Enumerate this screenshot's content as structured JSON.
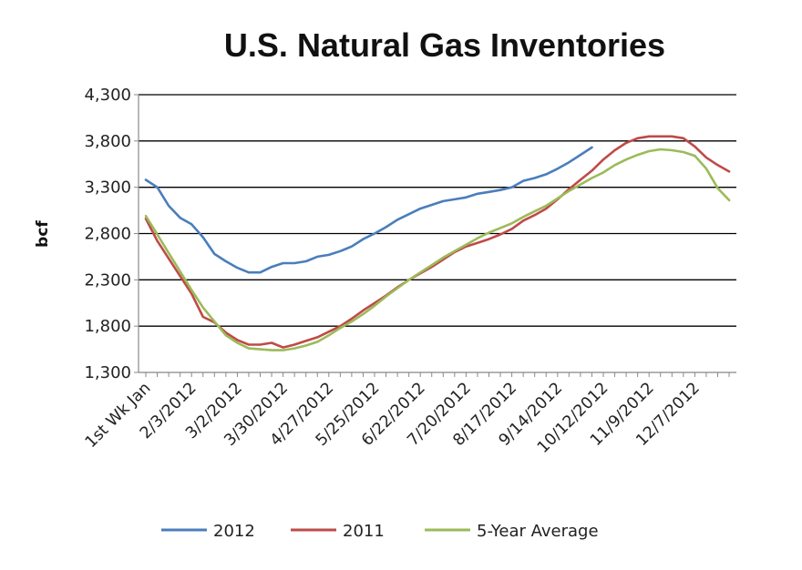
{
  "chart_data": {
    "type": "line",
    "title": "U.S. Natural Gas Inventories",
    "xlabel": "",
    "ylabel": "bcf",
    "ylim": [
      1300,
      4300
    ],
    "yticks": [
      1300,
      1800,
      2300,
      2800,
      3300,
      3800,
      4300
    ],
    "ytick_labels": [
      "1,300",
      "1,800",
      "2,300",
      "2,800",
      "3,300",
      "3,800",
      "4,300"
    ],
    "grid": true,
    "legend_position": "bottom",
    "x_count": 52,
    "x_ticks": [
      {
        "index": 0,
        "label": "1st Wk Jan"
      },
      {
        "index": 4,
        "label": "2/3/2012"
      },
      {
        "index": 8,
        "label": "3/2/2012"
      },
      {
        "index": 12,
        "label": "3/30/2012"
      },
      {
        "index": 16,
        "label": "4/27/2012"
      },
      {
        "index": 20,
        "label": "5/25/2012"
      },
      {
        "index": 24,
        "label": "6/22/2012"
      },
      {
        "index": 28,
        "label": "7/20/2012"
      },
      {
        "index": 32,
        "label": "8/17/2012"
      },
      {
        "index": 36,
        "label": "9/14/2012"
      },
      {
        "index": 40,
        "label": "10/12/2012"
      },
      {
        "index": 44,
        "label": "11/9/2012"
      },
      {
        "index": 48,
        "label": "12/7/2012"
      }
    ],
    "series": [
      {
        "name": "2012",
        "color": "#4a7ebb",
        "values": [
          3380,
          3300,
          3100,
          2970,
          2900,
          2760,
          2580,
          2500,
          2430,
          2380,
          2380,
          2440,
          2480,
          2480,
          2500,
          2550,
          2570,
          2610,
          2660,
          2740,
          2800,
          2870,
          2950,
          3010,
          3070,
          3110,
          3150,
          3170,
          3190,
          3230,
          3250,
          3270,
          3300,
          3370,
          3400,
          3440,
          3500,
          3570,
          3650,
          3730
        ]
      },
      {
        "name": "2011",
        "color": "#be4b48",
        "values": [
          2960,
          2720,
          2530,
          2340,
          2150,
          1900,
          1840,
          1730,
          1650,
          1600,
          1600,
          1620,
          1570,
          1600,
          1640,
          1680,
          1740,
          1800,
          1880,
          1970,
          2050,
          2130,
          2220,
          2300,
          2370,
          2440,
          2520,
          2600,
          2660,
          2700,
          2740,
          2790,
          2850,
          2940,
          3000,
          3070,
          3170,
          3280,
          3380,
          3480,
          3600,
          3700,
          3780,
          3830,
          3850,
          3850,
          3850,
          3830,
          3740,
          3620,
          3540,
          3470
        ]
      },
      {
        "name": "5-Year Average",
        "color": "#9bbb59",
        "values": [
          2990,
          2790,
          2590,
          2390,
          2190,
          2000,
          1850,
          1700,
          1620,
          1560,
          1550,
          1540,
          1540,
          1560,
          1590,
          1630,
          1700,
          1780,
          1850,
          1930,
          2020,
          2120,
          2210,
          2300,
          2380,
          2460,
          2540,
          2610,
          2680,
          2750,
          2810,
          2860,
          2910,
          2980,
          3040,
          3100,
          3180,
          3260,
          3330,
          3400,
          3460,
          3540,
          3600,
          3650,
          3690,
          3710,
          3700,
          3680,
          3640,
          3500,
          3290,
          3160
        ]
      }
    ]
  }
}
